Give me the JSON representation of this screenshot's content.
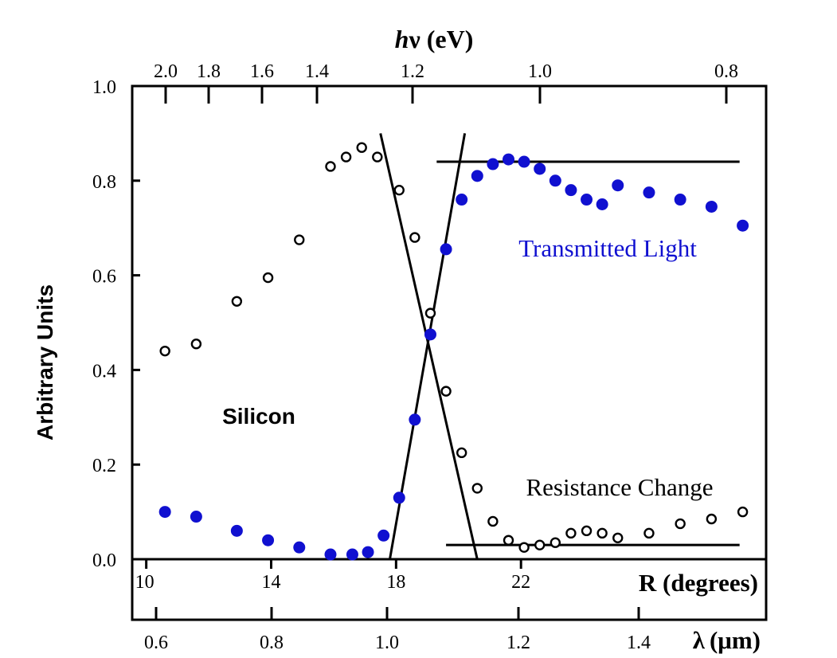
{
  "chart_data": {
    "type": "scatter",
    "title": "",
    "ylabel": "Arbitrary Units",
    "ylim": [
      0.0,
      1.0
    ],
    "yticks": [
      "0.0",
      "0.2",
      "0.4",
      "0.6",
      "0.8",
      "1.0"
    ],
    "top_axis": {
      "label": "hν (eV)",
      "label_italic_part": "h",
      "label_rest": "ν (eV)",
      "ticks": [
        "2.0",
        "1.8",
        "1.6",
        "1.4",
        "1.2",
        "1.0",
        "0.8"
      ]
    },
    "x_axis_R": {
      "label": "R (degrees)",
      "xlim": [
        9.55,
        29.85
      ],
      "ticks": [
        "10",
        "14",
        "18",
        "22"
      ]
    },
    "x_axis_lambda": {
      "label": "λ (μm)",
      "label_symbol": "λ",
      "label_rest": "(μm)",
      "ticks": [
        "0.6",
        "0.8",
        "1.0",
        "1.2",
        "1.4"
      ]
    },
    "grid": false,
    "annotations": [
      "Silicon",
      "Transmitted Light",
      "Resistance Change"
    ],
    "series": [
      {
        "name": "Transmitted Light",
        "marker": "filled-circle",
        "color": "#1010d0",
        "x": [
          10.6,
          11.6,
          12.9,
          13.9,
          14.9,
          15.9,
          16.6,
          17.1,
          17.6,
          18.1,
          18.6,
          19.1,
          19.6,
          20.1,
          20.6,
          21.1,
          21.6,
          22.1,
          22.6,
          23.1,
          23.6,
          24.1,
          24.6,
          25.1,
          26.1,
          27.1,
          28.1,
          29.1
        ],
        "values": [
          0.1,
          0.09,
          0.06,
          0.04,
          0.025,
          0.01,
          0.01,
          0.015,
          0.05,
          0.13,
          0.295,
          0.475,
          0.655,
          0.76,
          0.81,
          0.835,
          0.845,
          0.84,
          0.825,
          0.8,
          0.78,
          0.76,
          0.75,
          0.79,
          0.775,
          0.76,
          0.745,
          0.705
        ]
      },
      {
        "name": "Resistance Change",
        "marker": "open-circle",
        "color": "#000000",
        "x": [
          10.6,
          11.6,
          12.9,
          13.9,
          14.9,
          15.9,
          16.4,
          16.9,
          17.4,
          18.1,
          18.6,
          19.1,
          19.6,
          20.1,
          20.6,
          21.1,
          21.6,
          22.1,
          22.6,
          23.1,
          23.6,
          24.1,
          24.6,
          25.1,
          26.1,
          27.1,
          28.1,
          29.1
        ],
        "values": [
          0.44,
          0.455,
          0.545,
          0.595,
          0.675,
          0.83,
          0.85,
          0.87,
          0.85,
          0.78,
          0.68,
          0.52,
          0.355,
          0.225,
          0.15,
          0.08,
          0.04,
          0.025,
          0.03,
          0.035,
          0.055,
          0.06,
          0.055,
          0.045,
          0.055,
          0.075,
          0.085,
          0.1
        ]
      }
    ],
    "lines": [
      {
        "x": [
          17.8,
          20.2
        ],
        "y": [
          0.0,
          0.9
        ]
      },
      {
        "x": [
          17.5,
          20.6
        ],
        "y": [
          0.9,
          0.0
        ]
      },
      {
        "x": [
          19.3,
          29.0
        ],
        "y": [
          0.84,
          0.84
        ]
      },
      {
        "x": [
          19.6,
          29.0
        ],
        "y": [
          0.03,
          0.03
        ]
      }
    ]
  }
}
